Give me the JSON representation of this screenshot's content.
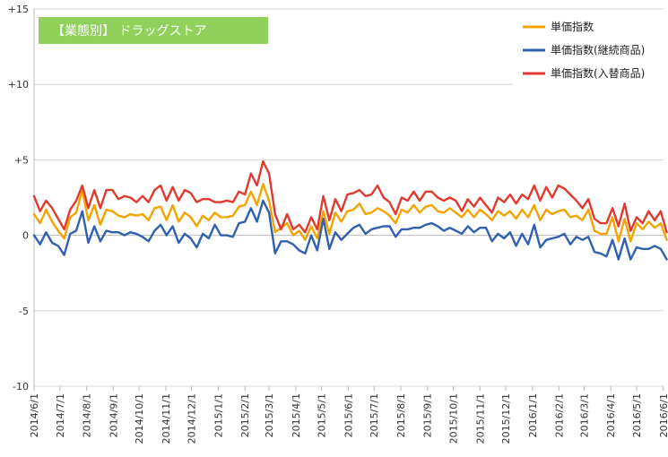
{
  "chart_data": {
    "type": "line",
    "title": "【業態別】 ドラッグストア",
    "title_box_color": "#8fd15a",
    "ylim": [
      -10,
      15
    ],
    "yticks": [
      {
        "value": 15,
        "label": "+15"
      },
      {
        "value": 10,
        "label": "+10"
      },
      {
        "value": 5,
        "label": "+5"
      },
      {
        "value": 0,
        "label": "0"
      },
      {
        "value": -5,
        "label": "-5"
      },
      {
        "value": -10,
        "label": "-10"
      }
    ],
    "x_labels": [
      "2014/6/1",
      "2014/7/1",
      "2014/8/1",
      "2014/9/1",
      "2014/10/1",
      "2014/11/1",
      "2014/12/1",
      "2015/1/1",
      "2015/2/1",
      "2015/3/1",
      "2015/4/1",
      "2015/5/1",
      "2015/6/1",
      "2015/7/1",
      "2015/8/1",
      "2015/9/1",
      "2015/10/1",
      "2015/11/1",
      "2015/12/1",
      "2016/1/1",
      "2016/2/1",
      "2016/3/1",
      "2016/4/1",
      "2016/5/1",
      "2016/6/1"
    ],
    "x_label_weeks": [
      0,
      4.29,
      8.71,
      13.14,
      17.43,
      21.86,
      26.14,
      30.57,
      35.0,
      39.0,
      43.43,
      47.71,
      52.14,
      56.43,
      60.86,
      65.29,
      69.57,
      74.0,
      78.29,
      82.71,
      87.14,
      91.29,
      95.71,
      100.0,
      104.43
    ],
    "x_unit": "weekly",
    "grid": true,
    "legend_position": "top-right",
    "series": [
      {
        "name": "単価指数",
        "color": "#f4a300",
        "values": [
          1.4,
          0.8,
          1.7,
          0.9,
          0.3,
          -0.2,
          1.2,
          1.5,
          3.0,
          1.0,
          2.0,
          0.7,
          1.7,
          1.6,
          1.3,
          1.2,
          1.4,
          1.3,
          1.4,
          1.0,
          1.8,
          1.9,
          1.0,
          2.0,
          0.9,
          1.5,
          1.2,
          0.6,
          1.3,
          1.0,
          1.5,
          1.2,
          1.2,
          1.3,
          1.9,
          2.0,
          2.9,
          2.0,
          3.4,
          2.3,
          0.2,
          0.5,
          0.8,
          0.0,
          0.3,
          -0.3,
          0.6,
          -0.2,
          1.6,
          0.1,
          1.5,
          0.9,
          1.6,
          1.7,
          2.1,
          1.4,
          1.5,
          1.8,
          1.6,
          1.3,
          0.8,
          1.7,
          1.5,
          2.0,
          1.5,
          1.9,
          2.0,
          1.6,
          1.5,
          1.8,
          1.5,
          1.2,
          1.7,
          1.2,
          1.7,
          1.4,
          1.0,
          1.6,
          1.3,
          1.6,
          1.1,
          1.7,
          1.2,
          2.0,
          1.0,
          1.7,
          1.4,
          1.6,
          1.7,
          1.2,
          1.3,
          1.0,
          1.7,
          0.3,
          0.1,
          0.1,
          1.2,
          -0.4,
          1.1,
          -0.4,
          0.8,
          0.4,
          0.9,
          0.5,
          0.8,
          -0.3
        ]
      },
      {
        "name": "単価指数(継続商品)",
        "color": "#3060b0",
        "values": [
          0.0,
          -0.6,
          0.2,
          -0.5,
          -0.7,
          -1.3,
          0.1,
          0.3,
          1.6,
          -0.5,
          0.6,
          -0.4,
          0.3,
          0.2,
          0.2,
          0.0,
          0.2,
          0.1,
          -0.1,
          -0.4,
          0.3,
          0.7,
          0.0,
          0.6,
          -0.5,
          0.1,
          -0.2,
          -0.8,
          0.1,
          -0.2,
          0.7,
          0.0,
          0.0,
          -0.1,
          0.8,
          0.9,
          1.8,
          0.9,
          2.3,
          1.5,
          -1.2,
          -0.4,
          -0.4,
          -0.6,
          -1.0,
          -1.2,
          0.0,
          -1.0,
          1.1,
          -0.9,
          0.2,
          -0.3,
          0.1,
          0.5,
          0.7,
          0.1,
          0.4,
          0.5,
          0.6,
          0.6,
          -0.1,
          0.4,
          0.4,
          0.5,
          0.5,
          0.7,
          0.8,
          0.6,
          0.3,
          0.5,
          0.3,
          0.1,
          0.6,
          0.2,
          0.5,
          0.5,
          -0.4,
          0.1,
          -0.2,
          0.2,
          -0.7,
          0.1,
          -0.6,
          0.7,
          -0.8,
          -0.3,
          -0.2,
          -0.1,
          0.1,
          -0.6,
          -0.1,
          -0.3,
          -0.1,
          -1.1,
          -1.2,
          -1.4,
          -0.3,
          -1.6,
          -0.2,
          -1.6,
          -0.8,
          -0.9,
          -0.9,
          -0.7,
          -0.9,
          -1.6
        ]
      },
      {
        "name": "単価指数(入替商品)",
        "color": "#e03a2e",
        "values": [
          2.6,
          1.6,
          2.3,
          1.8,
          1.1,
          0.4,
          1.7,
          2.3,
          3.3,
          1.8,
          3.0,
          1.8,
          3.0,
          3.0,
          2.4,
          2.6,
          2.5,
          2.2,
          2.6,
          2.2,
          3.0,
          3.3,
          2.3,
          3.2,
          2.3,
          3.0,
          2.8,
          2.2,
          2.4,
          2.4,
          2.2,
          2.2,
          2.3,
          2.2,
          2.9,
          2.7,
          4.1,
          3.3,
          4.9,
          4.1,
          1.4,
          0.4,
          1.4,
          0.4,
          0.7,
          0.2,
          1.2,
          0.4,
          2.6,
          1.0,
          2.4,
          1.6,
          2.7,
          2.8,
          3.0,
          2.6,
          2.7,
          3.3,
          2.5,
          2.2,
          1.4,
          2.5,
          2.3,
          2.9,
          2.3,
          2.9,
          2.9,
          2.5,
          2.3,
          2.5,
          2.3,
          1.6,
          2.4,
          1.9,
          2.5,
          2.0,
          1.5,
          2.5,
          2.2,
          2.7,
          2.1,
          2.7,
          2.4,
          3.3,
          2.3,
          3.2,
          2.5,
          3.3,
          3.1,
          2.7,
          2.3,
          1.8,
          2.4,
          1.1,
          0.8,
          0.8,
          1.8,
          0.6,
          2.1,
          0.3,
          1.2,
          0.8,
          1.6,
          1.0,
          1.6,
          0.2
        ]
      }
    ]
  }
}
